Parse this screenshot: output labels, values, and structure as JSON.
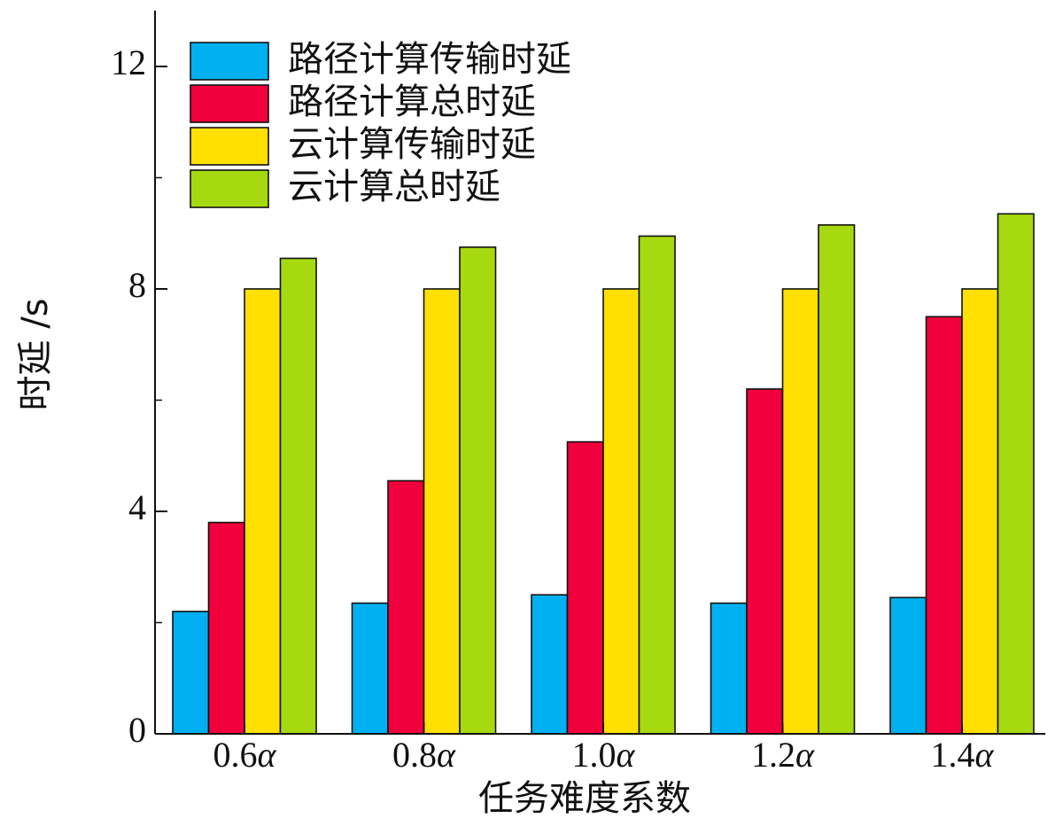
{
  "chart_data": {
    "type": "bar",
    "xlabel": "任务难度系数",
    "ylabel": "时延 /s",
    "ylim": [
      0,
      12
    ],
    "yticks": [
      0,
      4,
      8,
      12
    ],
    "categories": [
      "0.6α",
      "0.8α",
      "1.0α",
      "1.2α",
      "1.4α"
    ],
    "category_labels": [
      {
        "num": "0.6",
        "sym": "α"
      },
      {
        "num": "0.8",
        "sym": "α"
      },
      {
        "num": "1.0",
        "sym": "α"
      },
      {
        "num": "1.2",
        "sym": "α"
      },
      {
        "num": "1.4",
        "sym": "α"
      }
    ],
    "legend_position": "top-left",
    "grid": false,
    "series": [
      {
        "name": "路径计算传输时延",
        "color": "#00b0f0",
        "values": [
          2.2,
          2.35,
          2.5,
          2.35,
          2.45
        ]
      },
      {
        "name": "路径计算总时延",
        "color": "#f0003c",
        "values": [
          3.8,
          4.55,
          5.25,
          6.2,
          7.5
        ]
      },
      {
        "name": "云计算传输时延",
        "color": "#ffe000",
        "values": [
          8.0,
          8.0,
          8.0,
          8.0,
          8.0
        ]
      },
      {
        "name": "云计算总时延",
        "color": "#a6d90f",
        "values": [
          8.55,
          8.75,
          8.95,
          9.15,
          9.35
        ]
      }
    ]
  }
}
